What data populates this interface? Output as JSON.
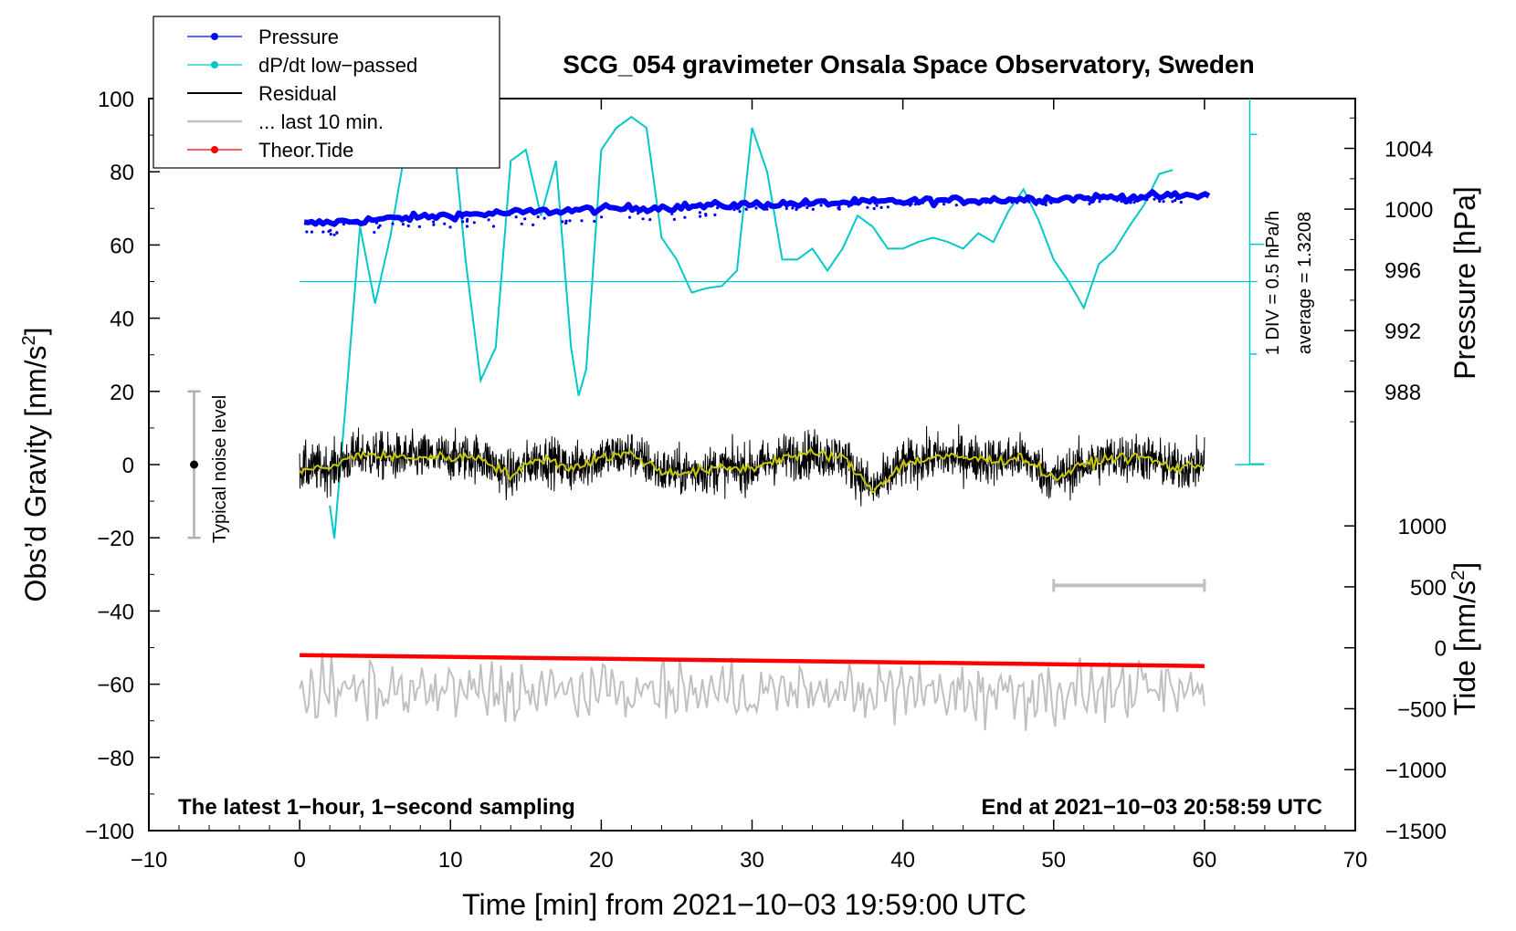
{
  "chart_data": {
    "type": "line",
    "title": "SCG_054 gravimeter Onsala Space Observatory, Sweden",
    "xlabel": "Time [min] from 2021−10−03 19:59:00 UTC",
    "ylabel_left_main": "Obs’d Gravity [nm/s",
    "ylabel_left_sup": "2",
    "ylabel_left_end": "]",
    "ylabel_right_pressure": "Pressure [hPa]",
    "ylabel_right_tide_main": "Tide [nm/s",
    "ylabel_right_tide_sup": "2",
    "ylabel_right_tide_end": "]",
    "xlim": [
      -10,
      70
    ],
    "ylim": [
      -100,
      100
    ],
    "x_ticks": [
      -10,
      0,
      10,
      20,
      30,
      40,
      50,
      60,
      70
    ],
    "x_tick_labels": [
      "−10",
      "0",
      "10",
      "20",
      "30",
      "40",
      "50",
      "60",
      "70"
    ],
    "y_ticks": [
      -100,
      -80,
      -60,
      -40,
      -20,
      0,
      20,
      40,
      60,
      80,
      100
    ],
    "y_tick_labels": [
      "−100",
      "−80",
      "−60",
      "−40",
      "−20",
      "0",
      "20",
      "40",
      "60",
      "80",
      "100"
    ],
    "pressure_axis": {
      "ticks": [
        988,
        992,
        996,
        1000,
        1004
      ],
      "tick_labels": [
        "988",
        "992",
        "996",
        "1000",
        "1004"
      ],
      "gravity_at_988": 20,
      "gravity_per_hpa": 4.15
    },
    "tide_axis": {
      "ticks": [
        -1500,
        -1000,
        -500,
        0,
        500,
        1000
      ],
      "tick_labels": [
        "−1500",
        "−1000",
        "−500",
        "0",
        "500",
        "1000"
      ],
      "gravity_at_minus1500": -100,
      "gravity_per_unit": 0.0333
    },
    "legend": [
      {
        "label": "Pressure",
        "color": "#0000ff",
        "marker": true
      },
      {
        "label": "dP/dt low−passed",
        "color": "#00c8c8",
        "marker": true
      },
      {
        "label": "Residual",
        "color": "#000000",
        "marker": false
      },
      {
        "label": "... last 10 min.",
        "color": "#c0c0c0",
        "marker": false
      },
      {
        "label": "Theor.Tide",
        "color": "#ff0000",
        "marker": true
      }
    ],
    "series": [
      {
        "name": "Pressure",
        "units": "hPa",
        "x": [
          0,
          10,
          20,
          30,
          40,
          50,
          60
        ],
        "values": [
          999.0,
          999.6,
          1000.0,
          1000.3,
          1000.5,
          1000.7,
          1000.9
        ]
      },
      {
        "name": "dP/dt low-passed",
        "units": "hPa/h",
        "x": [
          2,
          2.3,
          3,
          4,
          5,
          6,
          7,
          8,
          9,
          10,
          11,
          12,
          13,
          14,
          15,
          16,
          17,
          18,
          18.5,
          19,
          20,
          21,
          22,
          23,
          24,
          25,
          26,
          27,
          28,
          29,
          30,
          31,
          32,
          33,
          34,
          35,
          36,
          37,
          38,
          39,
          40,
          41,
          42,
          43,
          44,
          45,
          46,
          47,
          48,
          49,
          50,
          51,
          52,
          53,
          54,
          55,
          56,
          57,
          58
        ],
        "values": [
          -1.02,
          -1.17,
          -0.6,
          0.25,
          -0.1,
          0.2,
          0.6,
          0.7,
          0.75,
          0.8,
          0.1,
          -0.45,
          -0.3,
          0.55,
          0.6,
          0.3,
          0.55,
          -0.3,
          -0.52,
          -0.4,
          0.6,
          0.7,
          0.75,
          0.7,
          0.2,
          0.1,
          -0.05,
          -0.03,
          -0.02,
          0.05,
          0.7,
          0.5,
          0.1,
          0.1,
          0.15,
          0.05,
          0.15,
          0.3,
          0.25,
          0.15,
          0.15,
          0.18,
          0.2,
          0.18,
          0.15,
          0.22,
          0.18,
          0.32,
          0.42,
          0.28,
          0.1,
          0.0,
          -0.12,
          0.08,
          0.14,
          0.25,
          0.35,
          0.49,
          0.51
        ]
      },
      {
        "name": "Residual (smoothed)",
        "units": "nm/s2",
        "x": [
          0,
          2,
          4,
          6,
          8,
          10,
          12,
          14,
          16,
          18,
          20,
          22,
          24,
          26,
          28,
          30,
          32,
          34,
          36,
          38,
          40,
          42,
          44,
          46,
          48,
          50,
          52,
          54,
          56,
          58,
          60
        ],
        "values": [
          -1,
          -1,
          3,
          2,
          2,
          2,
          2,
          -3,
          2,
          -1,
          2,
          3,
          -2,
          -2,
          -1,
          -1,
          2,
          3,
          2,
          -7,
          0,
          2,
          2,
          1,
          2,
          -4,
          0,
          2,
          2,
          -1,
          0
        ]
      },
      {
        "name": "Theor.Tide",
        "units": "nm/s2",
        "x": [
          0,
          60
        ],
        "values": [
          -60,
          -150
        ]
      }
    ],
    "annotations": {
      "pressure_scale_1": "1 DIV = 0.5 hPa/h",
      "pressure_scale_2": "average = 1.3208",
      "noise_label": "Typical noise level",
      "noise_range": [
        -20,
        20
      ],
      "last10_range_min": [
        50,
        60
      ],
      "note_left": "The latest 1−hour, 1−second sampling",
      "note_right": "End at 2021−10−03 20:58:59 UTC"
    }
  }
}
